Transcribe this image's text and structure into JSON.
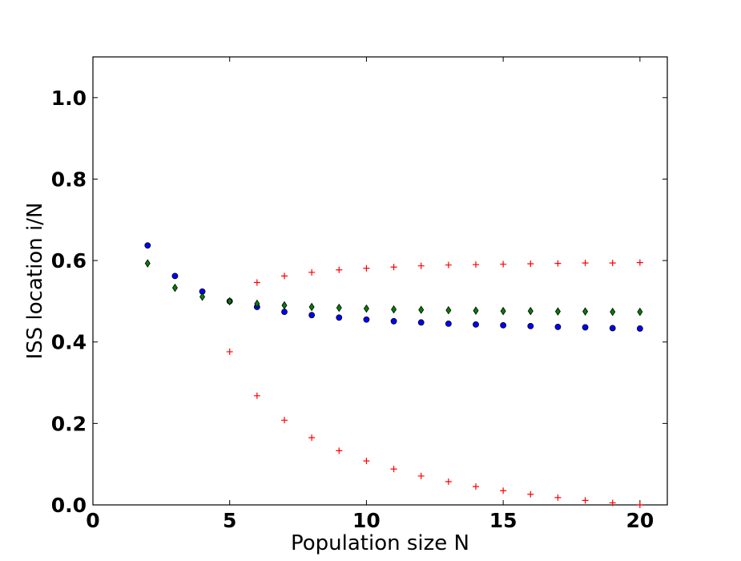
{
  "chart_data": {
    "type": "scatter",
    "title": "",
    "xlabel": "Population size N",
    "ylabel": "ISS location i/N",
    "xlim": [
      0,
      21
    ],
    "ylim": [
      0,
      1.1
    ],
    "xticks": [
      0,
      5,
      10,
      15,
      20
    ],
    "xtick_labels": [
      "0",
      "5",
      "10",
      "15",
      "20"
    ],
    "yticks": [
      0.0,
      0.2,
      0.4,
      0.6,
      0.8,
      1.0
    ],
    "ytick_labels": [
      "0.0",
      "0.2",
      "0.4",
      "0.6",
      "0.8",
      "1.0"
    ],
    "grid": false,
    "legend": false,
    "series": [
      {
        "marker": "circle",
        "color": "#0000ff",
        "x": [
          2,
          3,
          4,
          5,
          6,
          7,
          8,
          9,
          10,
          11,
          12,
          13,
          14,
          15,
          16,
          17,
          18,
          19,
          20
        ],
        "y": [
          0.637,
          0.562,
          0.524,
          0.5,
          0.486,
          0.474,
          0.466,
          0.46,
          0.455,
          0.451,
          0.448,
          0.445,
          0.443,
          0.441,
          0.439,
          0.437,
          0.436,
          0.434,
          0.433
        ]
      },
      {
        "marker": "diamond",
        "color": "#008000",
        "x": [
          2,
          3,
          4,
          5,
          6,
          7,
          8,
          9,
          10,
          11,
          12,
          13,
          14,
          15,
          16,
          17,
          18,
          19,
          20
        ],
        "y": [
          0.593,
          0.533,
          0.511,
          0.5,
          0.494,
          0.49,
          0.486,
          0.484,
          0.482,
          0.48,
          0.479,
          0.478,
          0.477,
          0.476,
          0.476,
          0.475,
          0.475,
          0.474,
          0.474
        ]
      },
      {
        "marker": "plus",
        "color": "#ff0000",
        "x": [
          5,
          6,
          7,
          8,
          9,
          10,
          11,
          12,
          13,
          14,
          15,
          16,
          17,
          18,
          19,
          20
        ],
        "y": [
          0.376,
          0.546,
          0.562,
          0.571,
          0.577,
          0.581,
          0.584,
          0.587,
          0.589,
          0.59,
          0.591,
          0.592,
          0.593,
          0.594,
          0.594,
          0.595
        ]
      },
      {
        "marker": "plus",
        "color": "#ff0000",
        "x": [
          6,
          7,
          8,
          9,
          10,
          11,
          12,
          13,
          14,
          15,
          16,
          17,
          18,
          19,
          20
        ],
        "y": [
          0.268,
          0.208,
          0.165,
          0.133,
          0.108,
          0.088,
          0.071,
          0.057,
          0.045,
          0.035,
          0.026,
          0.018,
          0.011,
          0.005,
          0.0
        ]
      }
    ]
  }
}
